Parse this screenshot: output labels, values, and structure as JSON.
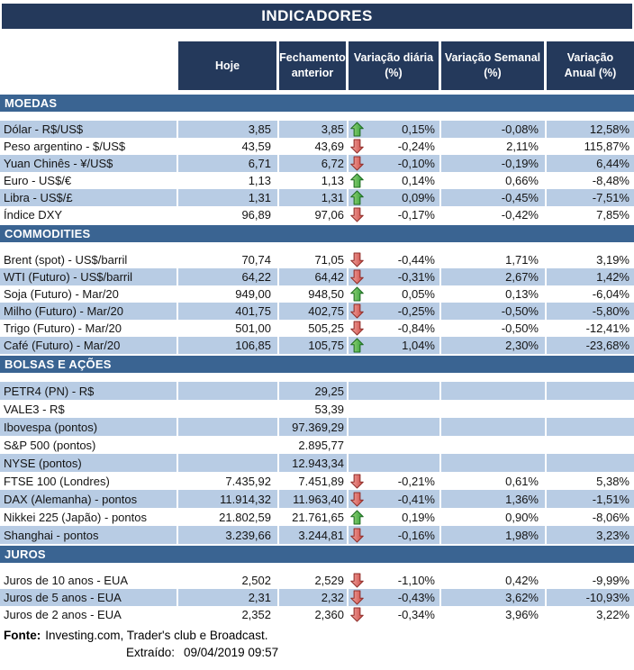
{
  "title": "INDICADORES",
  "header": {
    "hoje": "Hoje",
    "fechamento": "Fechamento\nanterior",
    "diaria": "Variação diária\n(%)",
    "semanal": "Variação Semanal\n(%)",
    "anual": "Variação\nAnual (%)"
  },
  "sections": [
    {
      "id": "moedas",
      "name": "MOEDAS",
      "first_row_blue": true,
      "rows": [
        {
          "label": "Dólar - R$/US$",
          "hoje": "3,85",
          "fechamento": "3,85",
          "arrow": "up",
          "diaria": "0,15%",
          "semanal": "-0,08%",
          "anual": "12,58%"
        },
        {
          "label": "Peso argentino - $/US$",
          "hoje": "43,59",
          "fechamento": "43,69",
          "arrow": "down",
          "diaria": "-0,24%",
          "semanal": "2,11%",
          "anual": "115,87%"
        },
        {
          "label": "Yuan Chinês - ¥/US$",
          "hoje": "6,71",
          "fechamento": "6,72",
          "arrow": "down",
          "diaria": "-0,10%",
          "semanal": "-0,19%",
          "anual": "6,44%"
        },
        {
          "label": "Euro - US$/€",
          "hoje": "1,13",
          "fechamento": "1,13",
          "arrow": "up",
          "diaria": "0,14%",
          "semanal": "0,66%",
          "anual": "-8,48%"
        },
        {
          "label": "Libra - US$/£",
          "hoje": "1,31",
          "fechamento": "1,31",
          "arrow": "up",
          "diaria": "0,09%",
          "semanal": "-0,45%",
          "anual": "-7,51%"
        },
        {
          "label": "Índice DXY",
          "hoje": "96,89",
          "fechamento": "97,06",
          "arrow": "down",
          "diaria": "-0,17%",
          "semanal": "-0,42%",
          "anual": "7,85%"
        }
      ]
    },
    {
      "id": "commodities",
      "name": "COMMODITIES",
      "first_row_blue": false,
      "rows": [
        {
          "label": "Brent (spot) - US$/barril",
          "hoje": "70,74",
          "fechamento": "71,05",
          "arrow": "down",
          "diaria": "-0,44%",
          "semanal": "1,71%",
          "anual": "3,19%"
        },
        {
          "label": "WTI (Futuro) - US$/barril",
          "hoje": "64,22",
          "fechamento": "64,42",
          "arrow": "down",
          "diaria": "-0,31%",
          "semanal": "2,67%",
          "anual": "1,42%"
        },
        {
          "label": "Soja (Futuro) - Mar/20",
          "hoje": "949,00",
          "fechamento": "948,50",
          "arrow": "up",
          "diaria": "0,05%",
          "semanal": "0,13%",
          "anual": "-6,04%"
        },
        {
          "label": "Milho (Futuro) - Mar/20",
          "hoje": "401,75",
          "fechamento": "402,75",
          "arrow": "down",
          "diaria": "-0,25%",
          "semanal": "-0,50%",
          "anual": "-5,80%"
        },
        {
          "label": "Trigo (Futuro) - Mar/20",
          "hoje": "501,00",
          "fechamento": "505,25",
          "arrow": "down",
          "diaria": "-0,84%",
          "semanal": "-0,50%",
          "anual": "-12,41%"
        },
        {
          "label": "Café (Futuro) - Mar/20",
          "hoje": "106,85",
          "fechamento": "105,75",
          "arrow": "up",
          "diaria": "1,04%",
          "semanal": "2,30%",
          "anual": "-23,68%"
        }
      ]
    },
    {
      "id": "bolsas-e-acoes",
      "name": "BOLSAS E AÇÕES",
      "first_row_blue": true,
      "rows": [
        {
          "label": "PETR4 (PN) - R$",
          "hoje": "",
          "fechamento": "29,25",
          "arrow": "",
          "diaria": "",
          "semanal": "",
          "anual": ""
        },
        {
          "label": "VALE3 - R$",
          "hoje": "",
          "fechamento": "53,39",
          "arrow": "",
          "diaria": "",
          "semanal": "",
          "anual": ""
        },
        {
          "label": "Ibovespa (pontos)",
          "hoje": "",
          "fechamento": "97.369,29",
          "arrow": "",
          "diaria": "",
          "semanal": "",
          "anual": ""
        },
        {
          "label": "S&P 500 (pontos)",
          "hoje": "",
          "fechamento": "2.895,77",
          "arrow": "",
          "diaria": "",
          "semanal": "",
          "anual": ""
        },
        {
          "label": "NYSE (pontos)",
          "hoje": "",
          "fechamento": "12.943,34",
          "arrow": "",
          "diaria": "",
          "semanal": "",
          "anual": ""
        },
        {
          "label": "FTSE 100 (Londres)",
          "hoje": "7.435,92",
          "fechamento": "7.451,89",
          "arrow": "down",
          "diaria": "-0,21%",
          "semanal": "0,61%",
          "anual": "5,38%"
        },
        {
          "label": "DAX (Alemanha) - pontos",
          "hoje": "11.914,32",
          "fechamento": "11.963,40",
          "arrow": "down",
          "diaria": "-0,41%",
          "semanal": "1,36%",
          "anual": "-1,51%"
        },
        {
          "label": "Nikkei 225 (Japão) - pontos",
          "hoje": "21.802,59",
          "fechamento": "21.761,65",
          "arrow": "up",
          "diaria": "0,19%",
          "semanal": "0,90%",
          "anual": "-8,06%"
        },
        {
          "label": "Shanghai - pontos",
          "hoje": "3.239,66",
          "fechamento": "3.244,81",
          "arrow": "down",
          "diaria": "-0,16%",
          "semanal": "1,98%",
          "anual": "3,23%"
        }
      ]
    },
    {
      "id": "juros",
      "name": "JUROS",
      "first_row_blue": false,
      "rows": [
        {
          "label": "Juros de 10 anos - EUA",
          "hoje": "2,502",
          "fechamento": "2,529",
          "arrow": "down",
          "diaria": "-1,10%",
          "semanal": "0,42%",
          "anual": "-9,99%"
        },
        {
          "label": "Juros de 5 anos - EUA",
          "hoje": "2,31",
          "fechamento": "2,32",
          "arrow": "down",
          "diaria": "-0,43%",
          "semanal": "3,62%",
          "anual": "-10,93%"
        },
        {
          "label": "Juros de 2 anos - EUA",
          "hoje": "2,352",
          "fechamento": "2,360",
          "arrow": "down",
          "diaria": "-0,34%",
          "semanal": "3,96%",
          "anual": "3,22%"
        }
      ]
    }
  ],
  "footer": {
    "fonte_label": "Fonte:",
    "fonte_text": "Investing.com, Trader's club e Broadcast.",
    "extraido_label": "Extraído:",
    "extraido_value": "09/04/2019 09:57"
  },
  "colors": {
    "navy": "#24395B",
    "section_blue": "#3A6492",
    "row_blue": "#B8CCE4",
    "up_green": "#2F9E38",
    "down_red": "#CC4842"
  }
}
